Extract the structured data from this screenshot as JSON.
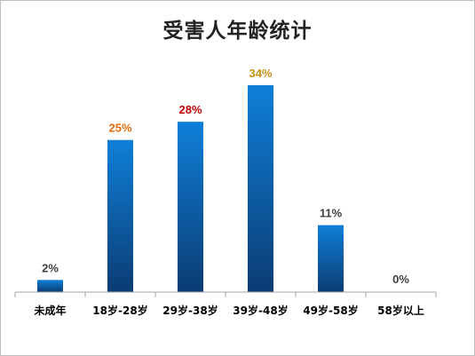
{
  "chart_data": {
    "type": "bar",
    "title": "受害人年龄统计",
    "categories": [
      "未成年",
      "18岁-28岁",
      "29岁-38岁",
      "39岁-48岁",
      "49岁-58岁",
      "58岁以上"
    ],
    "values": [
      2,
      25,
      28,
      34,
      11,
      0
    ],
    "value_labels": [
      "2%",
      "25%",
      "28%",
      "34%",
      "11%",
      "0%"
    ],
    "label_colors": [
      "#404040",
      "#e46c0a",
      "#c00000",
      "#c69214",
      "#404040",
      "#404040"
    ],
    "unit": "%",
    "ylim": [
      0,
      34
    ],
    "grid": false,
    "legend": "none",
    "bar_color_top": "#0f7fd8",
    "bar_color_bottom": "#0b3c73",
    "axis_color": "#a6a6a6"
  }
}
